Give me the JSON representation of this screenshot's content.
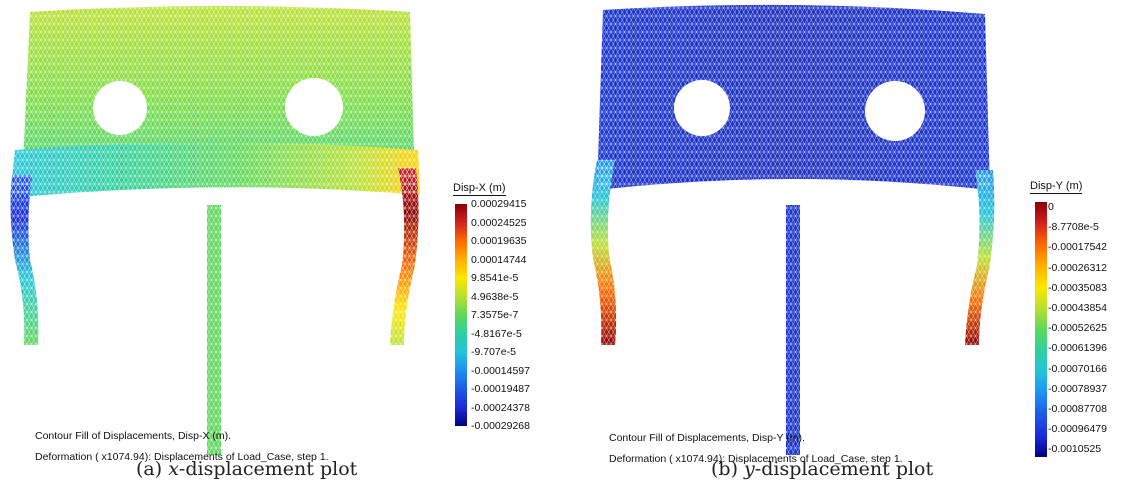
{
  "panels": [
    {
      "legend_title": "Disp-X (m)",
      "ticks": [
        "0.00029415",
        "0.00024525",
        "0.00019635",
        "0.00014744",
        "9.8541e-5",
        "4.9638e-5",
        "7.3575e-7",
        "-4.8167e-5",
        "-9.707e-5",
        "-0.00014597",
        "-0.00019487",
        "-0.00024378",
        "-0.00029268"
      ],
      "caption_line1": "Contour Fill of Displacements, Disp-X (m).",
      "caption_line2": "Deformation ( x1074.94): Displacements of Load_Case, step 1.",
      "subcaption_prefix": "(a)",
      "subcaption_var": "x",
      "subcaption_suffix": "-displacement plot"
    },
    {
      "legend_title": "Disp-Y (m)",
      "ticks": [
        "0",
        "-8.7708e-5",
        "-0.00017542",
        "-0.00026312",
        "-0.00035083",
        "-0.00043854",
        "-0.00052625",
        "-0.00061396",
        "-0.00070166",
        "-0.00078937",
        "-0.00087708",
        "-0.00096479",
        "-0.0010525"
      ],
      "caption_line1": "Contour Fill of Displacements, Disp-Y (m).",
      "caption_line2": "Deformation ( x1074.94): Displacements of Load_Case, step 1.",
      "subcaption_prefix": "(b)",
      "subcaption_var": "y",
      "subcaption_suffix": "-displacement plot"
    }
  ],
  "colors": {
    "colormap": [
      "#8b0000",
      "#d42020",
      "#ff6a00",
      "#ffb000",
      "#ffe600",
      "#b8e030",
      "#5ed85a",
      "#2ed0a0",
      "#22c4d8",
      "#1e90f0",
      "#1c5ae6",
      "#1a2ad8",
      "#000080"
    ],
    "mesh_line": "#ffffff"
  }
}
